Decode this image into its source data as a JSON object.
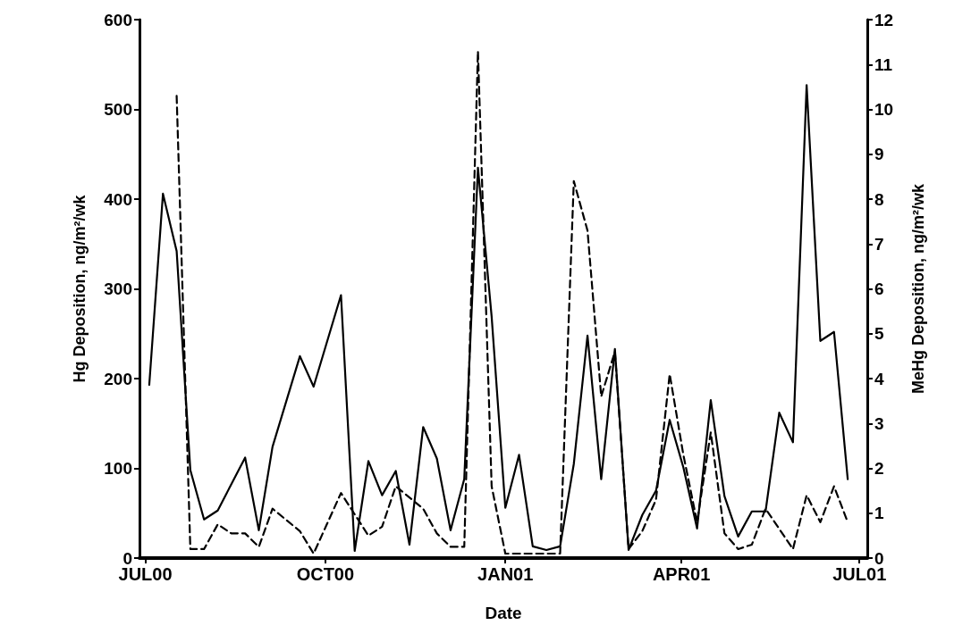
{
  "chart_data": {
    "type": "line",
    "xlabel": "Date",
    "ylabel": "Hg Deposition, ng/m²/wk",
    "y2label": "MeHg Deposition, ng/m²/wk",
    "xlim": [
      "2000-06-28",
      "2001-07-05"
    ],
    "xticks": [
      {
        "value": "2000-07-01",
        "label": "JUL00"
      },
      {
        "value": "2000-10-01",
        "label": "OCT00"
      },
      {
        "value": "2001-01-01",
        "label": "JAN01"
      },
      {
        "value": "2001-04-01",
        "label": "APR01"
      },
      {
        "value": "2001-07-01",
        "label": "JUL01"
      }
    ],
    "ylim": [
      0,
      600
    ],
    "yticks": [
      0,
      100,
      200,
      300,
      400,
      500,
      600
    ],
    "y2lim": [
      0,
      12
    ],
    "y2ticks": [
      0,
      1,
      2,
      3,
      4,
      5,
      6,
      7,
      8,
      9,
      10,
      11,
      12
    ],
    "grid": false,
    "marker": "none",
    "series": [
      {
        "color": "#000000",
        "line_style": "solid",
        "x": [
          "2000-07-03",
          "2000-07-10",
          "2000-07-17",
          "2000-07-24",
          "2000-07-31",
          "2000-08-07",
          "2000-08-21",
          "2000-08-28",
          "2000-09-04",
          "2000-09-18",
          "2000-09-25",
          "2000-10-09",
          "2000-10-16",
          "2000-10-23",
          "2000-10-30",
          "2000-11-06",
          "2000-11-13",
          "2000-11-20",
          "2000-11-27",
          "2000-12-04",
          "2000-12-11",
          "2000-12-18",
          "2000-12-25",
          "2001-01-01",
          "2001-01-08",
          "2001-01-15",
          "2001-01-22",
          "2001-01-29",
          "2001-02-05",
          "2001-02-12",
          "2001-02-19",
          "2001-02-26",
          "2001-03-05",
          "2001-03-12",
          "2001-03-19",
          "2001-03-26",
          "2001-04-02",
          "2001-04-09",
          "2001-04-16",
          "2001-04-23",
          "2001-04-30",
          "2001-05-07",
          "2001-05-14",
          "2001-05-21",
          "2001-05-28",
          "2001-06-04",
          "2001-06-11",
          "2001-06-18",
          "2001-06-25"
        ],
        "values": [
          193,
          406,
          342,
          98,
          43,
          53,
          112,
          31,
          124,
          225,
          191,
          293,
          8,
          108,
          70,
          97,
          15,
          146,
          111,
          31,
          88,
          435,
          269,
          56,
          115,
          13,
          9,
          13,
          105,
          248,
          88,
          233,
          9,
          48,
          75,
          154,
          101,
          33,
          176,
          69,
          24,
          52,
          52,
          162,
          129,
          527,
          242,
          252,
          88
        ]
      },
      {
        "color": "#000000",
        "line_style": "dashed",
        "axis": "y2",
        "x": [
          "2000-07-17",
          "2000-07-24",
          "2000-07-31",
          "2000-08-07",
          "2000-08-14",
          "2000-08-21",
          "2000-08-28",
          "2000-09-04",
          "2000-09-11",
          "2000-09-18",
          "2000-09-25",
          "2000-10-09",
          "2000-10-23",
          "2000-10-30",
          "2000-11-06",
          "2000-11-20",
          "2000-11-27",
          "2000-12-04",
          "2000-12-11",
          "2000-12-18",
          "2000-12-25",
          "2001-01-01",
          "2001-01-08",
          "2001-01-15",
          "2001-01-22",
          "2001-01-29",
          "2001-02-05",
          "2001-02-12",
          "2001-02-19",
          "2001-02-26",
          "2001-03-05",
          "2001-03-12",
          "2001-03-19",
          "2001-03-26",
          "2001-04-02",
          "2001-04-09",
          "2001-04-16",
          "2001-04-23",
          "2001-04-30",
          "2001-05-07",
          "2001-05-14",
          "2001-05-28",
          "2001-06-04",
          "2001-06-11",
          "2001-06-18",
          "2001-06-25"
        ],
        "values": [
          10.3,
          0.2,
          0.2,
          0.75,
          0.55,
          0.55,
          0.25,
          1.1,
          0.85,
          0.6,
          0.1,
          1.45,
          0.5,
          0.7,
          1.6,
          1.1,
          0.55,
          0.25,
          0.25,
          11.3,
          1.6,
          0.1,
          0.1,
          0.1,
          0.1,
          0.1,
          8.4,
          7.3,
          3.6,
          4.6,
          0.2,
          0.6,
          1.3,
          4.1,
          2.3,
          0.8,
          2.8,
          0.55,
          0.2,
          0.3,
          1.1,
          0.2,
          1.4,
          0.8,
          1.6,
          0.8
        ]
      }
    ]
  }
}
